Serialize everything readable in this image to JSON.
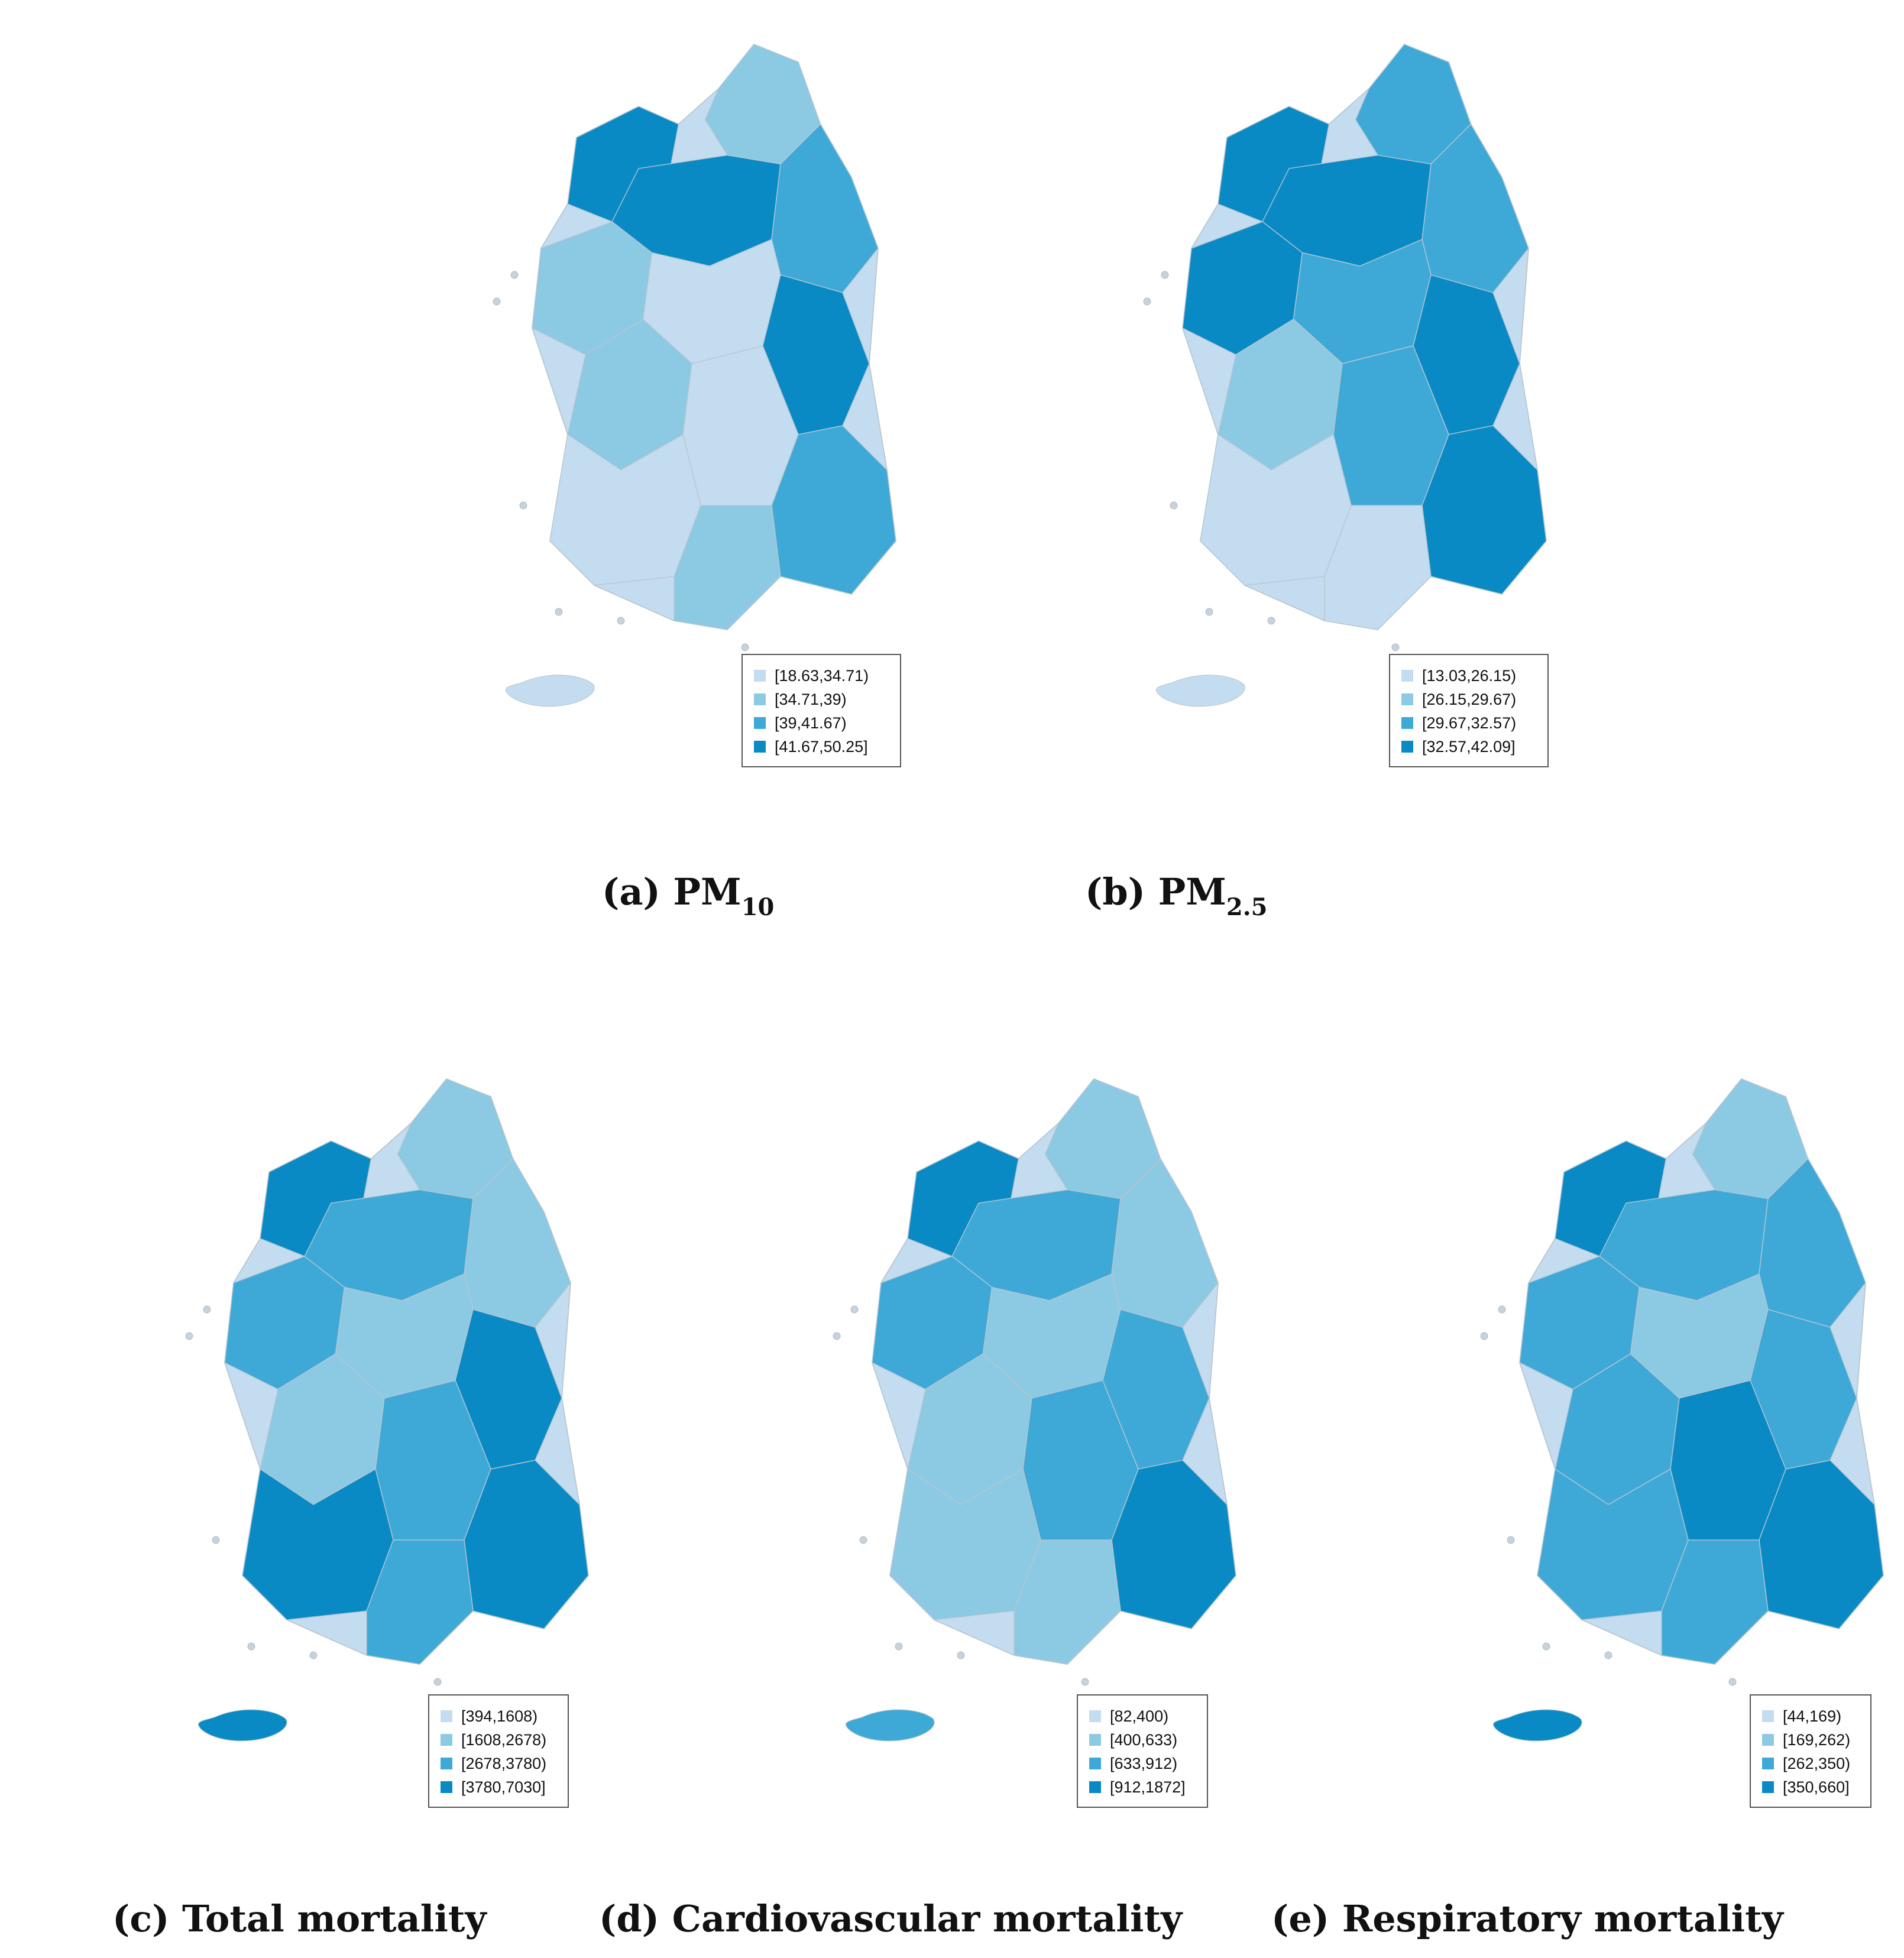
{
  "panels": [
    {
      "id": "a",
      "caption_prefix": "(a) PM",
      "caption_sub": "10",
      "legend": [
        "[18.63,34.71)",
        "[34.71,39)",
        "[39,41.67)",
        "[41.67,50.25]"
      ],
      "fills": [
        1,
        3,
        3,
        2,
        1,
        0,
        3,
        1,
        0,
        2,
        0,
        1
      ]
    },
    {
      "id": "b",
      "caption_prefix": "(b)  PM",
      "caption_sub": "2.5",
      "legend": [
        "[13.03,26.15)",
        "[26.15,29.67)",
        "[29.67,32.57)",
        "[32.57,42.09]"
      ],
      "fills": [
        2,
        3,
        3,
        2,
        3,
        2,
        3,
        1,
        2,
        3,
        0,
        0
      ]
    },
    {
      "id": "c",
      "caption_prefix": "(c) Total mortality",
      "caption_sub": "",
      "legend": [
        "[394,1608)",
        "[1608,2678)",
        "[2678,3780)",
        "[3780,7030]"
      ],
      "fills": [
        1,
        3,
        2,
        1,
        2,
        1,
        3,
        1,
        2,
        3,
        3,
        2
      ]
    },
    {
      "id": "d",
      "caption_prefix": "(d) Cardiovascular mortality",
      "caption_sub": "",
      "legend": [
        "[82,400)",
        "[400,633)",
        "[633,912)",
        "[912,1872]"
      ],
      "fills": [
        1,
        3,
        2,
        1,
        2,
        1,
        2,
        1,
        2,
        3,
        1,
        1
      ]
    },
    {
      "id": "e",
      "caption_prefix": "(e) Respiratory mortality",
      "caption_sub": "",
      "legend": [
        "[44,169)",
        "[169,262)",
        "[262,350)",
        "[350,660]"
      ],
      "fills": [
        1,
        3,
        2,
        2,
        2,
        1,
        2,
        2,
        3,
        3,
        2,
        2
      ]
    }
  ],
  "colors": [
    "#c4dcef",
    "#8cc9e3",
    "#3ea9d7",
    "#0a8ac4"
  ]
}
